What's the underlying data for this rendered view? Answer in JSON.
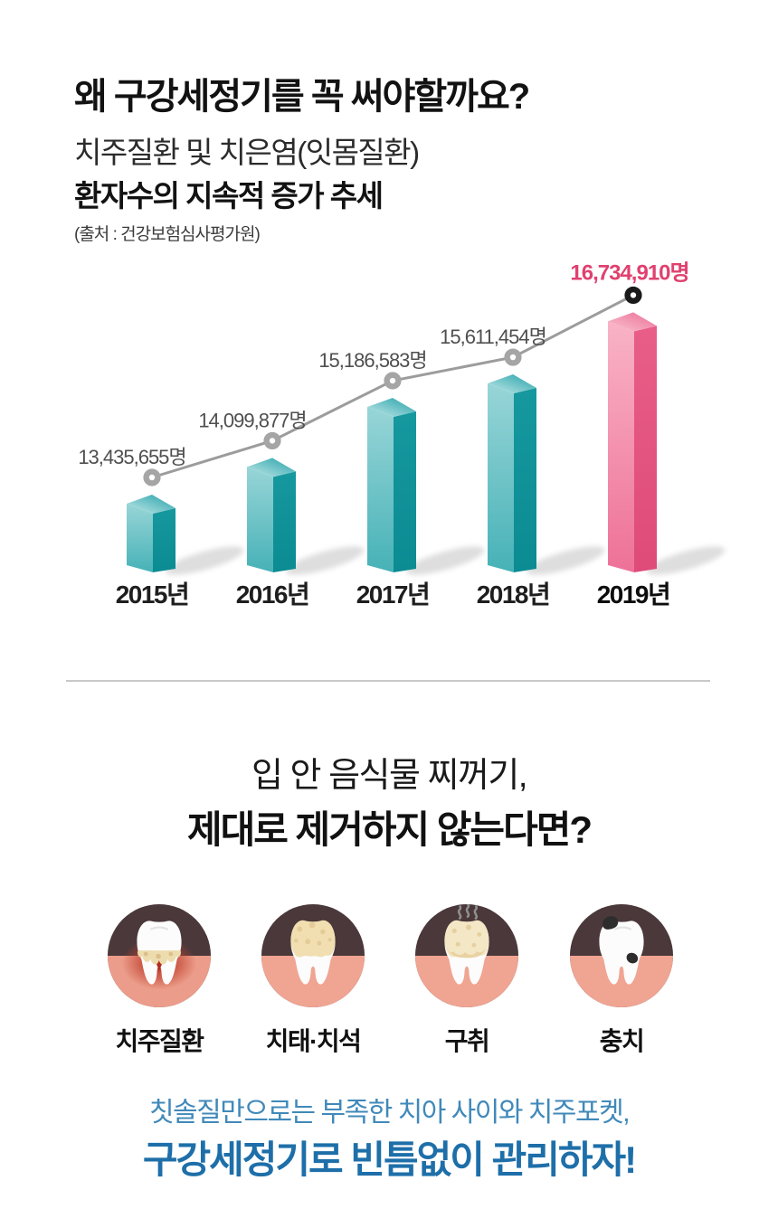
{
  "header": {
    "title": "왜 구강세정기를 꼭 써야할까요?",
    "subtitle_light": "치주질환 및 치은염(잇몸질환)",
    "subtitle_bold": "환자수의 지속적 증가 추세",
    "source": "(출처 : 건강보험심사평가원)"
  },
  "chart_data": {
    "type": "bar",
    "categories": [
      "2015년",
      "2016년",
      "2017년",
      "2018년",
      "2019년"
    ],
    "values": [
      13435655,
      14099877,
      15186583,
      15611454,
      16734910
    ],
    "value_labels": [
      "13,435,655명",
      "14,099,877명",
      "15,186,583명",
      "15,611,454명",
      "16,734,910명"
    ],
    "unit": "명",
    "highlight_index": 4,
    "ylim": [
      13000000,
      17000000
    ],
    "grid": false,
    "legend": "none",
    "style": "3d-bars-with-trend-line",
    "colors": {
      "bar_teal": "#2aa2a8",
      "bar_pink": "#ec6590",
      "trend_line": "#9c9c9c",
      "marker_ring": "#a5a5a5",
      "marker_ring_highlight": "#1a1a1a",
      "value_label": "#4f4f4f",
      "value_label_highlight": "#e0416f"
    }
  },
  "mid_heading": {
    "line1": "입 안 음식물 찌꺼기,",
    "line2": "제대로 제거하지 않는다면?"
  },
  "icons": {
    "items": [
      {
        "icon": "periodontal-disease-icon",
        "label": "치주질환"
      },
      {
        "icon": "plaque-tartar-icon",
        "label": "치태·치석"
      },
      {
        "icon": "bad-breath-icon",
        "label": "구취"
      },
      {
        "icon": "cavity-icon",
        "label": "충치"
      }
    ],
    "colors": {
      "circle_top_brown": "#4a383a",
      "circle_gum_salmon": "#f0a492",
      "inflamed_red": "#b02c1e",
      "plaque_beige": "#f1dfb2"
    }
  },
  "footer": {
    "line1": "칫솔질만으로는 부족한 치아 사이와 치주포켓,",
    "line2": "구강세정기로 빈틈없이 관리하자!",
    "accent_light": "#4089ba",
    "accent_bold": "#1e6fa9"
  }
}
